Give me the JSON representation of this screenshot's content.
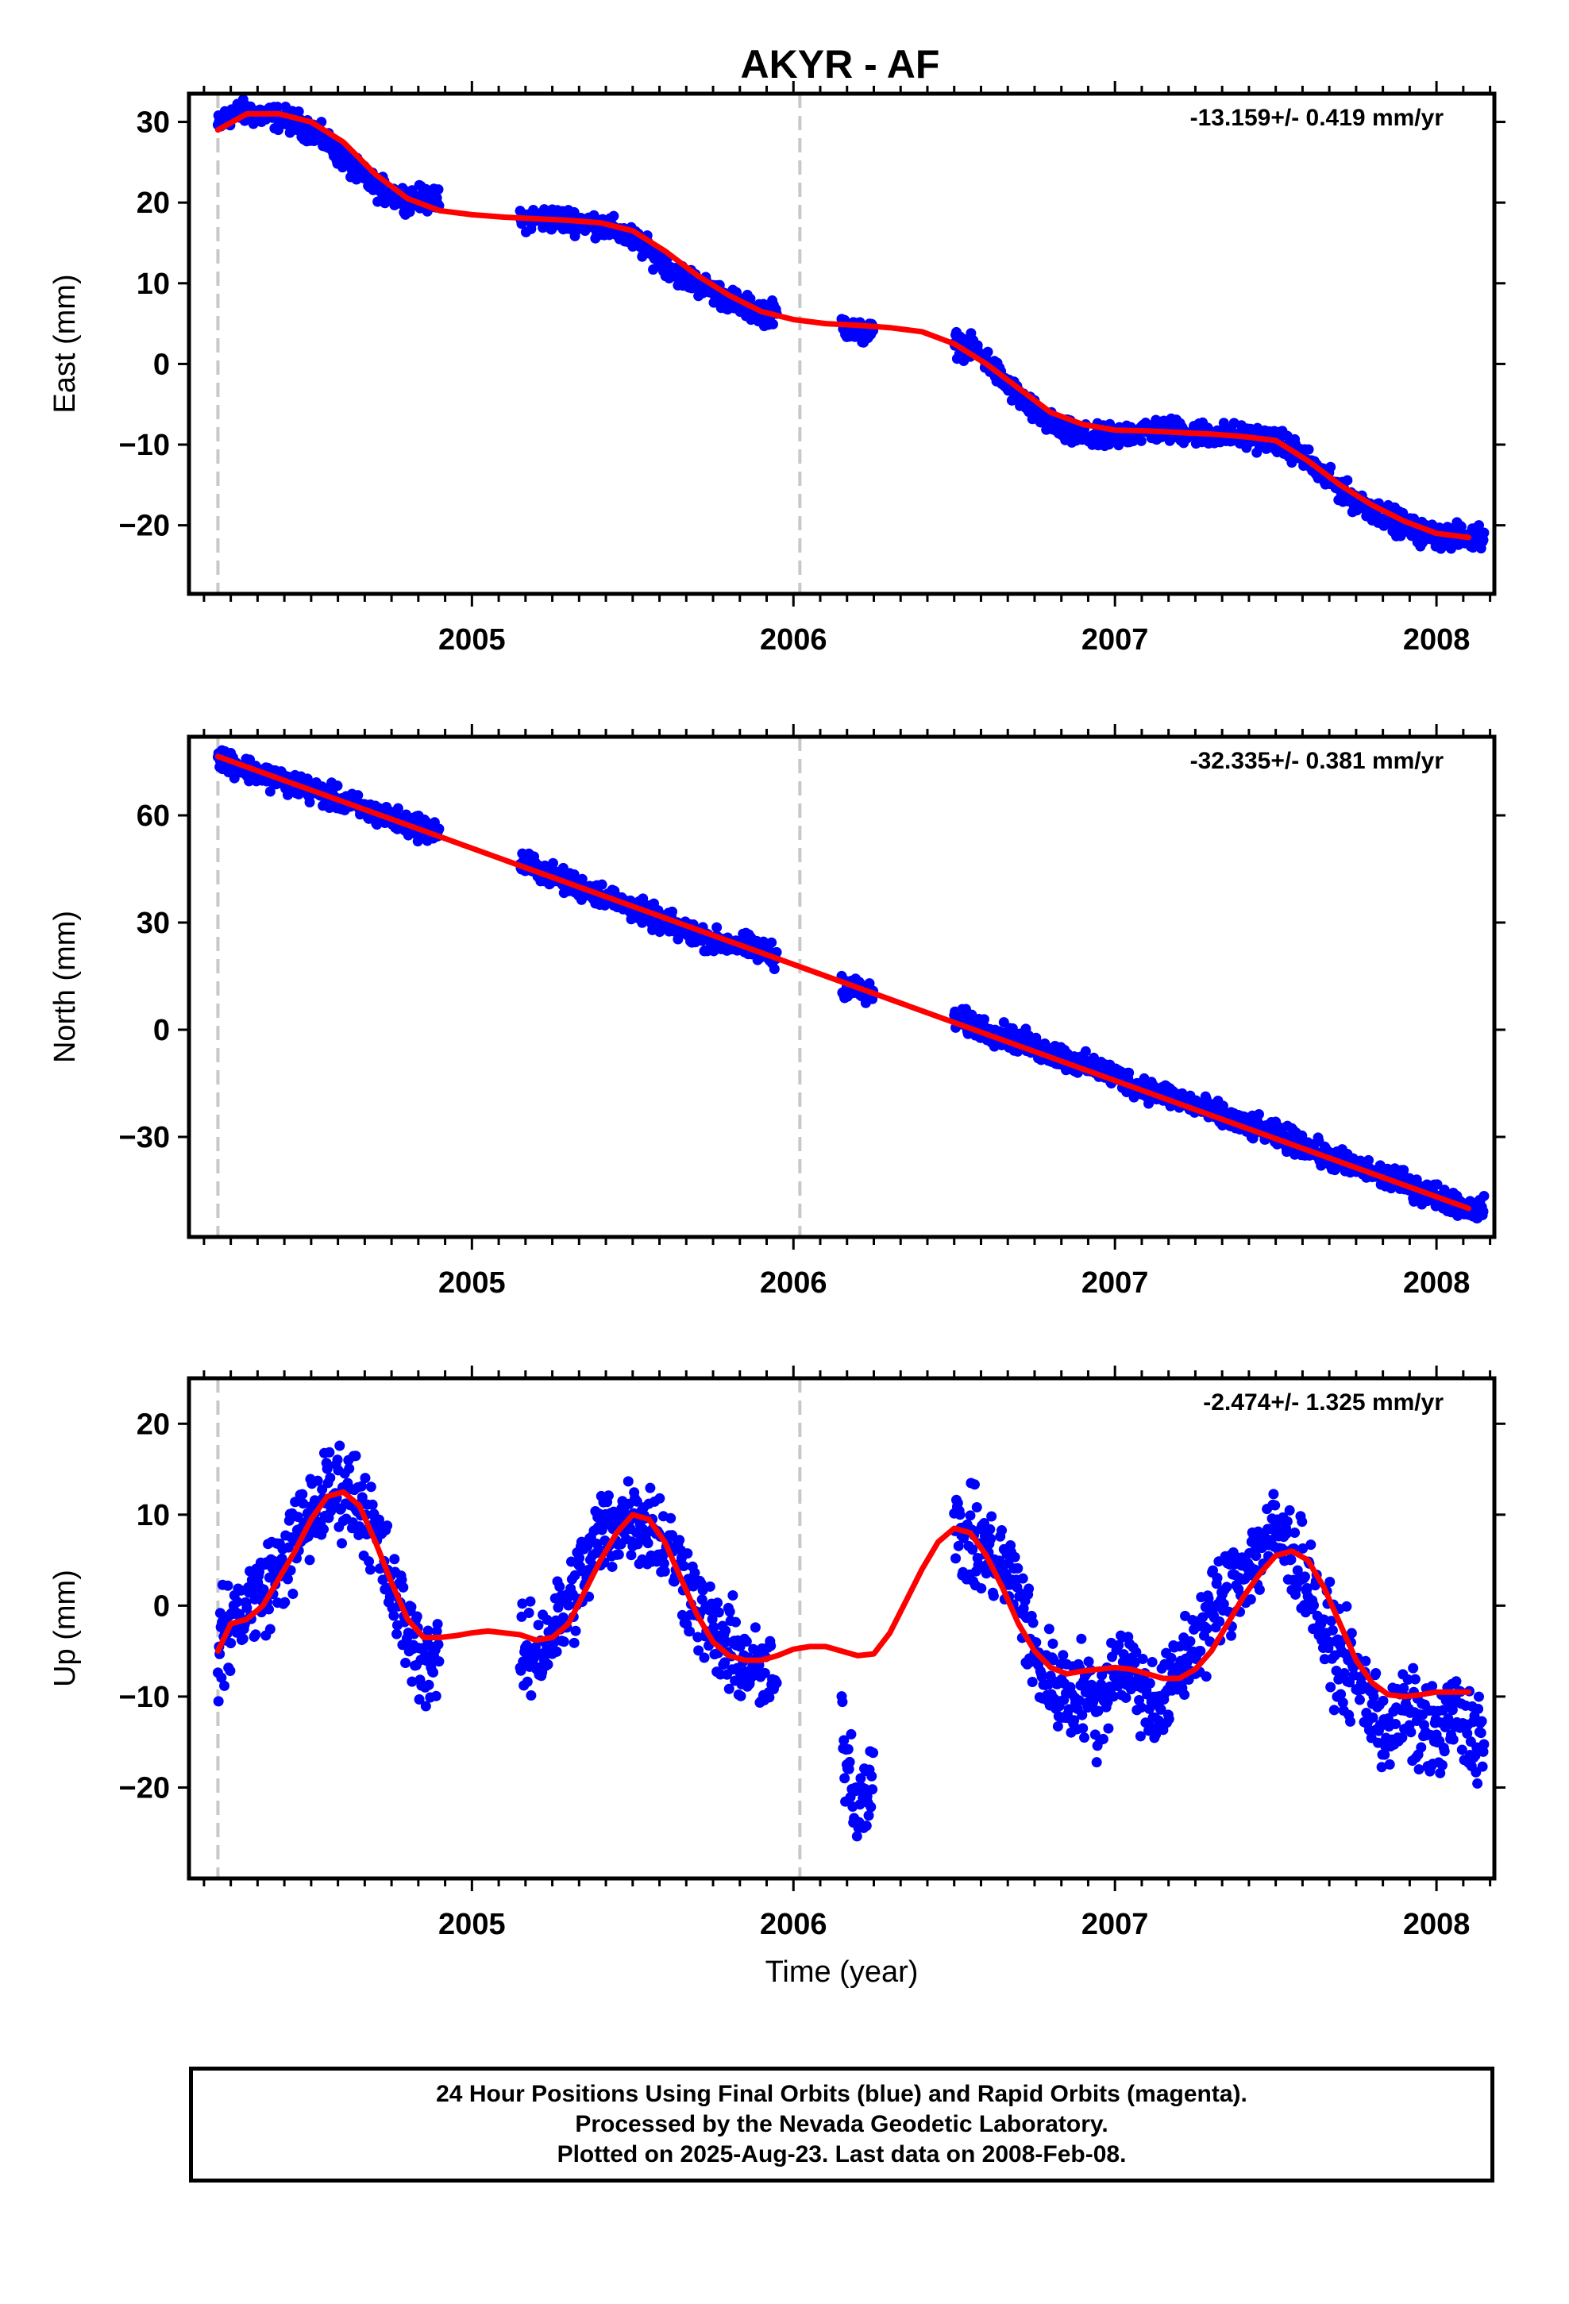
{
  "title": "AKYR - AF",
  "chart_data": [
    {
      "type": "scatter",
      "ylabel": "East (mm)",
      "xlabel": "",
      "rate": "-13.159+/- 0.419 mm/yr",
      "xlim": [
        2004.12,
        2008.18
      ],
      "ylim": [
        -28.5,
        33.5
      ],
      "yticks": [
        30,
        20,
        10,
        0,
        -10,
        -20
      ],
      "ytick_labels": [
        "30",
        "20",
        "10",
        "0",
        "−10",
        "−20"
      ],
      "xticks": [
        2005,
        2006,
        2007,
        2008
      ],
      "xtick_labels": [
        "2005",
        "2006",
        "2007",
        "2008"
      ],
      "dashed_lines": [
        2004.21,
        2006.02
      ],
      "series": [
        {
          "role": "points",
          "color": "#0000ff",
          "x": [
            2004.21,
            2004.25,
            2004.3,
            2004.35,
            2004.4,
            2004.45,
            2004.5,
            2004.55,
            2004.6,
            2004.65,
            2004.7,
            2004.75,
            2004.8,
            2004.85,
            2005.15,
            2005.2,
            2005.25,
            2005.3,
            2005.35,
            2005.4,
            2005.45,
            2005.5,
            2005.55,
            2005.6,
            2005.65,
            2005.7,
            2005.75,
            2005.8,
            2005.85,
            2005.9,
            2006.15,
            2006.2,
            2006.5,
            2006.55,
            2006.6,
            2006.65,
            2006.7,
            2006.75,
            2006.8,
            2006.85,
            2006.9,
            2006.95,
            2007.0,
            2007.05,
            2007.1,
            2007.15,
            2007.2,
            2007.25,
            2007.3,
            2007.35,
            2007.4,
            2007.45,
            2007.5,
            2007.55,
            2007.6,
            2007.65,
            2007.7,
            2007.75,
            2007.8,
            2007.85,
            2007.9,
            2007.95,
            2008.0,
            2008.05,
            2008.1
          ],
          "y": [
            29.5,
            31,
            31.2,
            30.8,
            30.5,
            30,
            29,
            27.5,
            25.5,
            23.5,
            22,
            21,
            20.5,
            20.5,
            18,
            18,
            18,
            17.8,
            17.6,
            17.2,
            16.5,
            15.5,
            14,
            12.5,
            11,
            10,
            9,
            8,
            7,
            6.5,
            5,
            4,
            2.5,
            2,
            0.5,
            -2,
            -4,
            -6,
            -7.5,
            -8.5,
            -9,
            -9.2,
            -9,
            -8.5,
            -8.2,
            -8.2,
            -8.3,
            -8.5,
            -8.7,
            -8.8,
            -9,
            -9.2,
            -9.5,
            -10.5,
            -12,
            -14,
            -15.5,
            -17,
            -18,
            -19,
            -20,
            -21,
            -21.3,
            -21.4,
            -21.5
          ]
        },
        {
          "role": "fit",
          "color": "#ff0000",
          "x": [
            2004.21,
            2004.3,
            2004.4,
            2004.5,
            2004.6,
            2004.7,
            2004.8,
            2004.9,
            2005.0,
            2005.1,
            2005.2,
            2005.3,
            2005.4,
            2005.5,
            2005.6,
            2005.7,
            2005.8,
            2005.9,
            2006.0,
            2006.1,
            2006.2,
            2006.3,
            2006.4,
            2006.5,
            2006.6,
            2006.7,
            2006.8,
            2006.9,
            2007.0,
            2007.1,
            2007.2,
            2007.3,
            2007.4,
            2007.5,
            2007.6,
            2007.7,
            2007.8,
            2007.9,
            2008.0,
            2008.1
          ],
          "y": [
            29,
            31,
            31,
            30,
            27.5,
            23.5,
            20.5,
            19,
            18.5,
            18.2,
            18,
            17.8,
            17.5,
            16.5,
            14,
            11,
            8.5,
            6.5,
            5.5,
            5,
            4.8,
            4.5,
            4,
            2.5,
            0,
            -3,
            -6,
            -7.5,
            -8.2,
            -8.3,
            -8.5,
            -8.7,
            -9,
            -9.5,
            -12,
            -15,
            -17.5,
            -19.5,
            -21,
            -21.5
          ]
        }
      ]
    },
    {
      "type": "scatter",
      "ylabel": "North (mm)",
      "xlabel": "",
      "rate": "-32.335+/- 0.381 mm/yr",
      "xlim": [
        2004.12,
        2008.18
      ],
      "ylim": [
        -58,
        82
      ],
      "yticks": [
        60,
        30,
        0,
        -30
      ],
      "ytick_labels": [
        "60",
        "30",
        "0",
        "−30"
      ],
      "xticks": [
        2005,
        2006,
        2007,
        2008
      ],
      "xtick_labels": [
        "2005",
        "2006",
        "2007",
        "2008"
      ],
      "dashed_lines": [
        2004.21,
        2006.02
      ],
      "series": [
        {
          "role": "points",
          "color": "#0000ff",
          "x": [
            2004.21,
            2004.25,
            2004.3,
            2004.35,
            2004.4,
            2004.45,
            2004.5,
            2004.55,
            2004.6,
            2004.65,
            2004.7,
            2004.75,
            2004.8,
            2004.85,
            2005.15,
            2005.2,
            2005.25,
            2005.3,
            2005.35,
            2005.4,
            2005.45,
            2005.5,
            2005.55,
            2005.6,
            2005.65,
            2005.7,
            2005.75,
            2005.8,
            2005.85,
            2005.9,
            2006.15,
            2006.2,
            2006.5,
            2006.55,
            2006.6,
            2006.65,
            2006.7,
            2006.75,
            2006.8,
            2006.85,
            2006.9,
            2006.95,
            2007.0,
            2007.05,
            2007.1,
            2007.15,
            2007.2,
            2007.25,
            2007.3,
            2007.35,
            2007.4,
            2007.45,
            2007.5,
            2007.55,
            2007.6,
            2007.65,
            2007.7,
            2007.75,
            2007.8,
            2007.85,
            2007.9,
            2007.95,
            2008.0,
            2008.05,
            2008.1
          ],
          "y": [
            77,
            75,
            73,
            71.5,
            70,
            68.5,
            67,
            65.5,
            64,
            62,
            60.5,
            59,
            57.5,
            56.5,
            47,
            45.5,
            43,
            41,
            39.5,
            38,
            36,
            34,
            32,
            30,
            28,
            26.5,
            25,
            24,
            23.5,
            22,
            13,
            11,
            3,
            1.5,
            0,
            -1.5,
            -3,
            -5,
            -6.5,
            -8,
            -10,
            -11,
            -13,
            -15,
            -16.5,
            -18,
            -19.5,
            -21,
            -23,
            -25,
            -26.5,
            -28,
            -29.5,
            -31,
            -33,
            -35,
            -37,
            -38.5,
            -40,
            -41.5,
            -43,
            -45,
            -46.5,
            -48,
            -50
          ]
        },
        {
          "role": "fit",
          "color": "#ff0000",
          "x": [
            2004.21,
            2008.1
          ],
          "y": [
            76.5,
            -50
          ]
        }
      ]
    },
    {
      "type": "scatter",
      "ylabel": "Up (mm)",
      "xlabel": "Time (year)",
      "rate": "-2.474+/- 1.325 mm/yr",
      "xlim": [
        2004.12,
        2008.18
      ],
      "ylim": [
        -30,
        25
      ],
      "yticks": [
        20,
        10,
        0,
        -10,
        -20
      ],
      "ytick_labels": [
        "20",
        "10",
        "0",
        "−10",
        "−20"
      ],
      "xticks": [
        2005,
        2006,
        2007,
        2008
      ],
      "xtick_labels": [
        "2005",
        "2006",
        "2007",
        "2008"
      ],
      "dashed_lines": [
        2004.21,
        2006.02
      ],
      "series": [
        {
          "role": "points",
          "color": "#0000ff",
          "x": [
            2004.21,
            2004.25,
            2004.3,
            2004.35,
            2004.4,
            2004.45,
            2004.5,
            2004.55,
            2004.6,
            2004.65,
            2004.7,
            2004.75,
            2004.8,
            2004.85,
            2005.15,
            2005.2,
            2005.25,
            2005.3,
            2005.35,
            2005.4,
            2005.45,
            2005.5,
            2005.55,
            2005.6,
            2005.65,
            2005.7,
            2005.75,
            2005.8,
            2005.85,
            2005.9,
            2006.15,
            2006.2,
            2006.5,
            2006.55,
            2006.6,
            2006.65,
            2006.7,
            2006.75,
            2006.8,
            2006.85,
            2006.9,
            2006.95,
            2007.0,
            2007.05,
            2007.1,
            2007.15,
            2007.2,
            2007.25,
            2007.3,
            2007.35,
            2007.4,
            2007.45,
            2007.5,
            2007.55,
            2007.6,
            2007.65,
            2007.7,
            2007.75,
            2007.8,
            2007.85,
            2007.9,
            2007.95,
            2008.0,
            2008.05,
            2008.1
          ],
          "y": [
            -5,
            -2,
            0,
            2,
            4,
            7,
            10,
            12,
            13,
            12,
            8,
            2,
            -3,
            -6,
            -6,
            -5,
            -3,
            0,
            4,
            8,
            9,
            10,
            9,
            7,
            4,
            0,
            -3,
            -5,
            -6,
            -8,
            -14,
            -22,
            8,
            7,
            6,
            4,
            2,
            -6,
            -8,
            -10,
            -9,
            -12,
            -6,
            -7,
            -10,
            -11,
            -7,
            -4,
            -1,
            2,
            4,
            6,
            8,
            6,
            3,
            -3,
            -6,
            -8,
            -11,
            -14,
            -12,
            -13,
            -15,
            -12,
            -14
          ]
        },
        {
          "role": "fit",
          "color": "#ff0000",
          "x": [
            2004.21,
            2004.25,
            2004.3,
            2004.35,
            2004.4,
            2004.45,
            2004.5,
            2004.55,
            2004.6,
            2004.65,
            2004.7,
            2004.75,
            2004.8,
            2004.85,
            2004.9,
            2004.95,
            2005.0,
            2005.05,
            2005.1,
            2005.15,
            2005.2,
            2005.25,
            2005.3,
            2005.35,
            2005.4,
            2005.45,
            2005.5,
            2005.55,
            2005.6,
            2005.65,
            2005.7,
            2005.75,
            2005.8,
            2005.85,
            2005.9,
            2005.95,
            2006.0,
            2006.05,
            2006.1,
            2006.15,
            2006.2,
            2006.25,
            2006.3,
            2006.35,
            2006.4,
            2006.45,
            2006.5,
            2006.55,
            2006.6,
            2006.65,
            2006.7,
            2006.75,
            2006.8,
            2006.85,
            2006.9,
            2006.95,
            2007.0,
            2007.05,
            2007.1,
            2007.15,
            2007.2,
            2007.25,
            2007.3,
            2007.35,
            2007.4,
            2007.45,
            2007.5,
            2007.55,
            2007.6,
            2007.65,
            2007.7,
            2007.75,
            2007.8,
            2007.85,
            2007.9,
            2007.95,
            2008.0,
            2008.05,
            2008.1
          ],
          "y": [
            -5,
            -2,
            -1.5,
            0,
            3,
            6,
            9.5,
            12,
            12.5,
            11,
            7,
            2.5,
            -1.5,
            -3.5,
            -3.5,
            -3.3,
            -3,
            -2.8,
            -3,
            -3.2,
            -3.8,
            -3.5,
            -2,
            1.5,
            5,
            8,
            10,
            9.5,
            7,
            3,
            -1,
            -4,
            -5.5,
            -6,
            -6,
            -5.5,
            -4.8,
            -4.5,
            -4.5,
            -5,
            -5.5,
            -5.3,
            -3,
            0.5,
            4,
            7,
            8.5,
            8,
            5.5,
            2,
            -2,
            -5,
            -6.8,
            -7.5,
            -7.2,
            -7,
            -6.8,
            -7,
            -7.5,
            -8,
            -8,
            -7,
            -5,
            -2,
            1,
            3.5,
            5.5,
            6,
            5,
            2,
            -2,
            -6,
            -8.5,
            -9.8,
            -10,
            -9.8,
            -9.5,
            -9.5,
            -9.5
          ]
        }
      ]
    }
  ],
  "footer": {
    "line1": "24 Hour Positions Using Final Orbits (blue) and Rapid Orbits (magenta).",
    "line2": "Processed by the Nevada Geodetic Laboratory.",
    "line3": "Plotted on 2025-Aug-23. Last data on 2008-Feb-08."
  }
}
